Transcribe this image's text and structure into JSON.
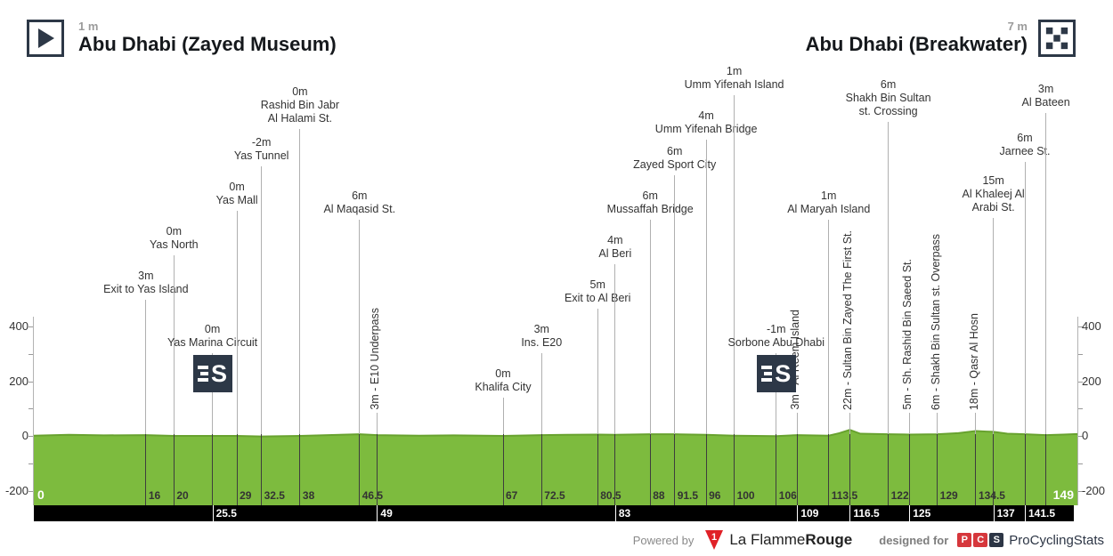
{
  "header": {
    "start": {
      "elevation": "1 m",
      "name": "Abu Dhabi (Zayed Museum)",
      "icon": "start-flag-icon"
    },
    "finish": {
      "elevation": "7 m",
      "name": "Abu Dhabi (Breakwater)",
      "icon": "checkered-flag-icon"
    }
  },
  "footer": {
    "powered_by": "Powered by",
    "lfr_name_regular": "La Flamme",
    "lfr_name_bold": "Rouge",
    "lfr_flag_digit": "1",
    "designed_for": "designed for",
    "pcs_letters": [
      "P",
      "C",
      "S"
    ],
    "pcs_name": "ProCyclingStats"
  },
  "chart_data": {
    "type": "area",
    "title": "",
    "xlabel": "",
    "ylabel": "",
    "xlim": [
      0,
      149
    ],
    "ylim": [
      -250,
      450
    ],
    "grid": false,
    "yticks_labeled": [
      400,
      200,
      0,
      -200
    ],
    "yticks_minor": [
      300,
      100,
      -100
    ],
    "x_start_label": "0",
    "x_end_label": "149",
    "x_ticks_green_row": [
      16,
      20,
      29,
      32.5,
      38,
      46.5,
      67,
      72.5,
      80.5,
      88,
      91.5,
      96,
      100,
      106,
      113.5,
      122,
      129,
      134.5
    ],
    "x_ticks_black_row": [
      25.5,
      49,
      83,
      109,
      116.5,
      125,
      137,
      141.5
    ],
    "colors": {
      "profile_fill": "#7dbb3e",
      "profile_edge": "#68a22f",
      "marker_line": "#b0b0b0",
      "marker_line_on_green": "#3d3d3d",
      "km_bar": "#000000",
      "icon_navy": "#2d3847",
      "lfr_red": "#e02127",
      "pcs_red": "#d6373c",
      "pcs_navy": "#2c3545"
    },
    "waypoints": [
      {
        "km": 16,
        "elev": "3m",
        "name_lines": [
          "Exit to Yas Island"
        ],
        "orient": "h",
        "top": 303
      },
      {
        "km": 20,
        "elev": "0m",
        "name_lines": [
          "Yas North"
        ],
        "orient": "h",
        "top": 253
      },
      {
        "km": 25.5,
        "elev": "0m",
        "name_lines": [
          "Yas Marina Circuit"
        ],
        "orient": "h",
        "top": 363,
        "sprint": true
      },
      {
        "km": 29,
        "elev": "0m",
        "name_lines": [
          "Yas Mall"
        ],
        "orient": "h",
        "top": 203
      },
      {
        "km": 32.5,
        "elev": "-2m",
        "name_lines": [
          "Yas Tunnel"
        ],
        "orient": "h",
        "top": 153
      },
      {
        "km": 38,
        "elev": "0m",
        "name_lines": [
          "Rashid Bin Jabr",
          "Al Halami St."
        ],
        "orient": "h",
        "top": 96
      },
      {
        "km": 46.5,
        "elev": "6m",
        "name_lines": [
          "Al Maqasid St."
        ],
        "orient": "h",
        "top": 213
      },
      {
        "km": 49,
        "elev": "3m",
        "vtext": "3m - E10 Underpass",
        "orient": "v"
      },
      {
        "km": 67,
        "elev": "0m",
        "name_lines": [
          "Khalifa City"
        ],
        "orient": "h",
        "top": 413
      },
      {
        "km": 72.5,
        "elev": "3m",
        "name_lines": [
          "Ins. E20"
        ],
        "orient": "h",
        "top": 363
      },
      {
        "km": 80.5,
        "elev": "5m",
        "name_lines": [
          "Exit to Al Beri"
        ],
        "orient": "h",
        "top": 313
      },
      {
        "km": 83,
        "elev": "4m",
        "name_lines": [
          "Al Beri"
        ],
        "orient": "h",
        "top": 263
      },
      {
        "km": 88,
        "elev": "6m",
        "name_lines": [
          "Mussaffah Bridge"
        ],
        "orient": "h",
        "top": 213
      },
      {
        "km": 91.5,
        "elev": "6m",
        "name_lines": [
          "Zayed Sport City"
        ],
        "orient": "h",
        "top": 163
      },
      {
        "km": 96,
        "elev": "4m",
        "name_lines": [
          "Umm Yifenah Bridge"
        ],
        "orient": "h",
        "top": 123
      },
      {
        "km": 100,
        "elev": "1m",
        "name_lines": [
          "Umm Yifenah Island"
        ],
        "orient": "h",
        "top": 73
      },
      {
        "km": 106,
        "elev": "-1m",
        "name_lines": [
          "Sorbone Abu Dhabi"
        ],
        "orient": "h",
        "top": 363,
        "sprint": true
      },
      {
        "km": 109,
        "elev": "3m",
        "vtext": "3m - Al Reem Island",
        "orient": "v"
      },
      {
        "km": 113.5,
        "elev": "1m",
        "name_lines": [
          "Al Maryah Island"
        ],
        "orient": "h",
        "top": 213
      },
      {
        "km": 116.5,
        "elev": "22m",
        "vtext": "22m - Sultan Bin Zayed The First St.",
        "orient": "v"
      },
      {
        "km": 122,
        "elev": "6m",
        "name_lines": [
          "Shakh Bin Sultan",
          "st. Crossing"
        ],
        "orient": "h",
        "top": 88
      },
      {
        "km": 125,
        "elev": "5m",
        "vtext": "5m - Sh. Rashid Bin Saeed St.",
        "orient": "v"
      },
      {
        "km": 129,
        "elev": "6m",
        "vtext": "6m - Shakh Bin Sultan st. Overpass",
        "orient": "v"
      },
      {
        "km": 134.5,
        "elev": "18m",
        "vtext": "18m - Qasr Al Hosn",
        "orient": "v"
      },
      {
        "km": 137,
        "elev": "15m",
        "name_lines": [
          "Al Khaleej Al",
          "Arabi St."
        ],
        "orient": "h",
        "top": 196
      },
      {
        "km": 141.5,
        "elev": "6m",
        "name_lines": [
          "Jarnee St."
        ],
        "orient": "h",
        "top": 148
      },
      {
        "km": 144.5,
        "elev": "3m",
        "name_lines": [
          "Al Bateen"
        ],
        "orient": "h",
        "top": 93
      }
    ],
    "profile": {
      "x": [
        0,
        5,
        10,
        16,
        20,
        25.5,
        29,
        32.5,
        38,
        42,
        46.5,
        49,
        55,
        60,
        67,
        72.5,
        76,
        80.5,
        83,
        88,
        91.5,
        96,
        100,
        103,
        106,
        109,
        113.5,
        115,
        116.5,
        118,
        122,
        125,
        129,
        132,
        134.5,
        136,
        137,
        139,
        141.5,
        144.5,
        147,
        149
      ],
      "elev": [
        1,
        4,
        2,
        3,
        0,
        0,
        0,
        -2,
        0,
        3,
        6,
        3,
        1,
        2,
        0,
        3,
        4,
        5,
        4,
        6,
        6,
        4,
        1,
        0,
        -1,
        3,
        1,
        10,
        22,
        8,
        6,
        5,
        6,
        10,
        18,
        16,
        15,
        8,
        6,
        3,
        5,
        7
      ]
    }
  }
}
